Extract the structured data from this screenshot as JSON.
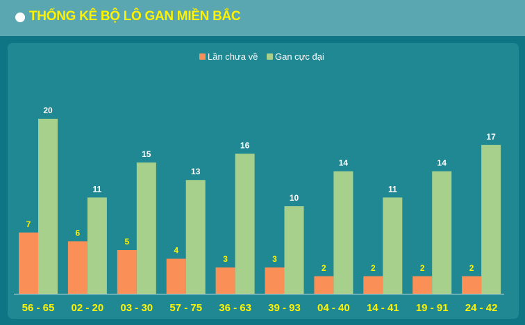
{
  "header": {
    "title": "THỐNG KÊ BỘ LÔ GAN MIỀN BẮC"
  },
  "colors": {
    "header_bg": "#5aa6b1",
    "page_bg": "#0e7584",
    "panel_bg": "#208893",
    "title": "#fff200",
    "series_current": "#fa8f57",
    "series_max": "#a6d08b",
    "value_label_current": "#fff200",
    "value_label_max": "#ffffff",
    "category_label": "#fff200"
  },
  "chart_data": {
    "type": "bar",
    "title": "",
    "xlabel": "",
    "ylabel": "",
    "ylim": [
      0,
      20
    ],
    "grid": false,
    "legend_position": "top-center",
    "categories": [
      "56 - 65",
      "02 - 20",
      "03 - 30",
      "57 - 75",
      "36 - 63",
      "39 - 93",
      "04 - 40",
      "14 - 41",
      "19 - 91",
      "24 - 42"
    ],
    "series": [
      {
        "name": "Lần chưa về",
        "values": [
          7,
          6,
          5,
          4,
          3,
          3,
          2,
          2,
          2,
          2
        ]
      },
      {
        "name": "Gan cực đại",
        "values": [
          20,
          11,
          15,
          13,
          16,
          10,
          14,
          11,
          14,
          17
        ]
      }
    ]
  }
}
